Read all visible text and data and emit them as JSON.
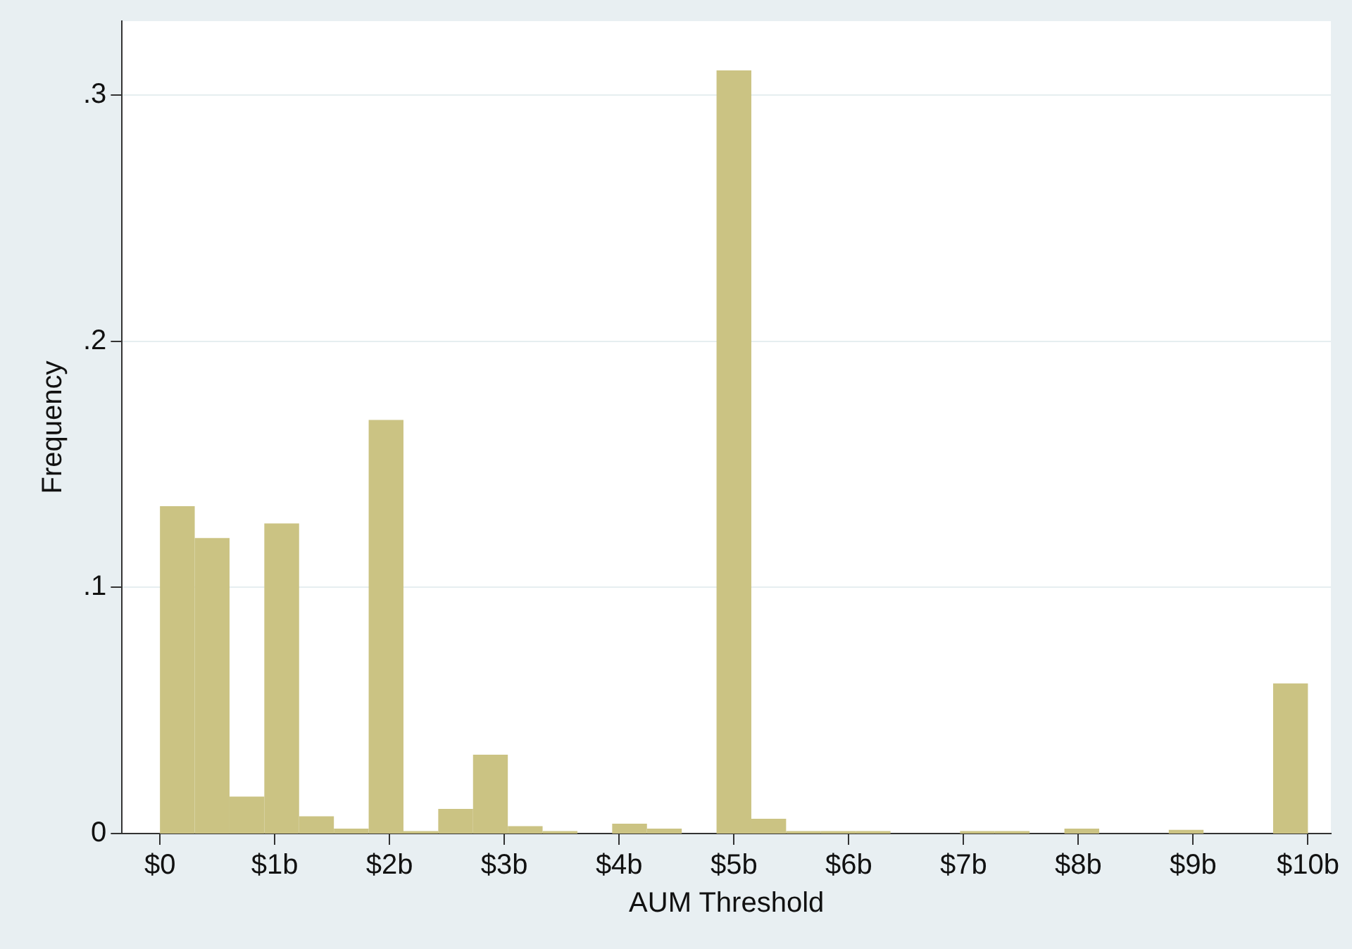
{
  "chart_data": {
    "type": "histogram",
    "xlabel": "AUM Threshold",
    "ylabel": "Frequency",
    "bins": [
      0,
      0.303,
      0.6061,
      0.9091,
      1.2121,
      1.5152,
      1.8182,
      2.1212,
      2.4242,
      2.7273,
      3.0303,
      3.3333,
      3.6364,
      3.9394,
      4.2424,
      4.5455,
      4.8485,
      5.1515,
      5.4545,
      5.7576,
      6.0606,
      6.3636,
      6.6667,
      6.9697,
      7.2727,
      7.5758,
      7.8788,
      8.1818,
      8.4848,
      8.7879,
      9.0909,
      9.3939,
      9.697,
      10
    ],
    "values": [
      0.133,
      0.12,
      0.015,
      0.126,
      0.007,
      0.002,
      0.168,
      0.001,
      0.01,
      0.032,
      0.003,
      0.001,
      0,
      0.004,
      0.002,
      0,
      0.31,
      0.006,
      0.001,
      0.001,
      0.001,
      0,
      0,
      0.001,
      0.001,
      0,
      0.002,
      0,
      0,
      0.0015,
      0,
      0,
      0.061
    ],
    "color": "#cbc383",
    "xlim": [
      -0.33,
      10.2
    ],
    "ylim": [
      0,
      0.33
    ],
    "xticks": [
      {
        "value": 0,
        "label": "$0"
      },
      {
        "value": 1,
        "label": "$1b"
      },
      {
        "value": 2,
        "label": "$2b"
      },
      {
        "value": 3,
        "label": "$3b"
      },
      {
        "value": 4,
        "label": "$4b"
      },
      {
        "value": 5,
        "label": "$5b"
      },
      {
        "value": 6,
        "label": "$6b"
      },
      {
        "value": 7,
        "label": "$7b"
      },
      {
        "value": 8,
        "label": "$8b"
      },
      {
        "value": 9,
        "label": "$9b"
      },
      {
        "value": 10,
        "label": "$10b"
      }
    ],
    "yticks": [
      {
        "value": 0,
        "label": "0"
      },
      {
        "value": 0.1,
        "label": ".1"
      },
      {
        "value": 0.2,
        "label": ".2"
      },
      {
        "value": 0.3,
        "label": ".3"
      }
    ],
    "grid": "y",
    "legend": false
  }
}
